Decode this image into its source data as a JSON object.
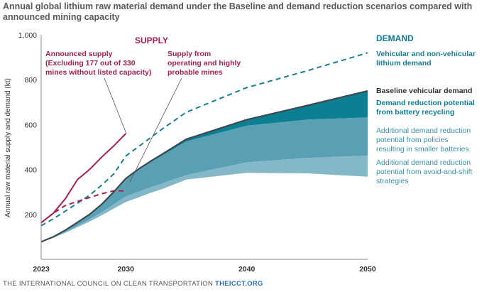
{
  "title": "Annual global lithium raw material demand under the Baseline and demand reduction scenarios compared with announced mining capacity",
  "footer": {
    "org": "THE INTERNATIONAL COUNCIL ON CLEAN TRANSPORTATION",
    "site": "THEICCT.ORG"
  },
  "colors": {
    "supply": "#a3234a",
    "demand_heading": "#0e7c93",
    "vehicular_dashed": "#1a7d94",
    "baseline": "#3d4a52",
    "recycling": "#0c7f93",
    "policies": "#5aa0b5",
    "avoid_shift": "#84b8c8",
    "label_light": "#3a93ab"
  },
  "chart_data": {
    "type": "area",
    "ylabel": "Annual raw material supply and demand (kt)",
    "xlim": [
      2023,
      2050
    ],
    "ylim": [
      0,
      1000
    ],
    "xticks": [
      2023,
      2030,
      2040,
      2050
    ],
    "yticks": [
      200,
      400,
      600,
      800,
      1000
    ],
    "ytick_labels": [
      "200",
      "400",
      "600",
      "800",
      "1,000"
    ],
    "grid": false,
    "headings": {
      "supply": "SUPPLY",
      "demand": "DEMAND"
    },
    "series": [
      {
        "name": "Vehicular and non-vehicular lithium demand",
        "style": "dashed",
        "x": [
          2023,
          2024,
          2025,
          2026,
          2027,
          2028,
          2029,
          2030,
          2031,
          2032,
          2033,
          2035,
          2040,
          2045,
          2050
        ],
        "values": [
          150,
          180,
          215,
          250,
          285,
          330,
          380,
          460,
          500,
          540,
          580,
          655,
          765,
          840,
          920
        ]
      },
      {
        "name": "Baseline vehicular demand",
        "style": "solid",
        "x": [
          2023,
          2024,
          2025,
          2026,
          2027,
          2028,
          2029,
          2030,
          2031,
          2032,
          2033,
          2035,
          2040,
          2045,
          2050
        ],
        "values": [
          78,
          100,
          130,
          165,
          200,
          245,
          300,
          360,
          400,
          435,
          468,
          535,
          622,
          685,
          750
        ]
      },
      {
        "name": "Demand reduction potential from battery recycling",
        "style": "band",
        "x": [
          2023,
          2024,
          2025,
          2026,
          2027,
          2028,
          2029,
          2030,
          2031,
          2032,
          2033,
          2035,
          2040,
          2045,
          2050
        ],
        "upper": [
          78,
          100,
          130,
          165,
          200,
          245,
          300,
          360,
          400,
          435,
          468,
          535,
          622,
          685,
          750
        ],
        "lower": [
          78,
          100,
          130,
          165,
          200,
          245,
          300,
          358,
          396,
          430,
          462,
          525,
          595,
          622,
          632
        ]
      },
      {
        "name": "Additional demand reduction potential from policies resulting in smaller batteries",
        "style": "band",
        "x": [
          2023,
          2024,
          2025,
          2026,
          2027,
          2028,
          2029,
          2030,
          2031,
          2032,
          2033,
          2035,
          2040,
          2045,
          2050
        ],
        "upper": [
          78,
          100,
          130,
          165,
          200,
          245,
          300,
          358,
          396,
          430,
          462,
          525,
          595,
          622,
          632
        ],
        "lower": [
          78,
          98,
          122,
          150,
          178,
          210,
          245,
          280,
          300,
          320,
          338,
          375,
          432,
          452,
          462
        ]
      },
      {
        "name": "Additional demand reduction potential from avoid-and-shift strategies",
        "style": "band",
        "x": [
          2023,
          2024,
          2025,
          2026,
          2027,
          2028,
          2029,
          2030,
          2031,
          2032,
          2033,
          2035,
          2040,
          2045,
          2050
        ],
        "upper": [
          78,
          98,
          122,
          150,
          178,
          210,
          245,
          280,
          300,
          320,
          338,
          375,
          432,
          452,
          462
        ],
        "lower": [
          78,
          96,
          118,
          143,
          168,
          196,
          226,
          255,
          275,
          295,
          313,
          355,
          385,
          383,
          368
        ]
      },
      {
        "name": "Announced supply (Excluding 177 out of 330 mines without listed capacity)",
        "style": "solid",
        "x": [
          2023,
          2024,
          2025,
          2026,
          2027,
          2028,
          2029,
          2030
        ],
        "values": [
          163,
          205,
          270,
          355,
          400,
          455,
          505,
          560
        ]
      },
      {
        "name": "Supply from operating and highly probable mines",
        "style": "dashed",
        "x": [
          2023,
          2024,
          2025,
          2026,
          2027,
          2028,
          2029,
          2030
        ],
        "values": [
          163,
          205,
          240,
          258,
          275,
          292,
          305,
          305
        ]
      }
    ]
  }
}
